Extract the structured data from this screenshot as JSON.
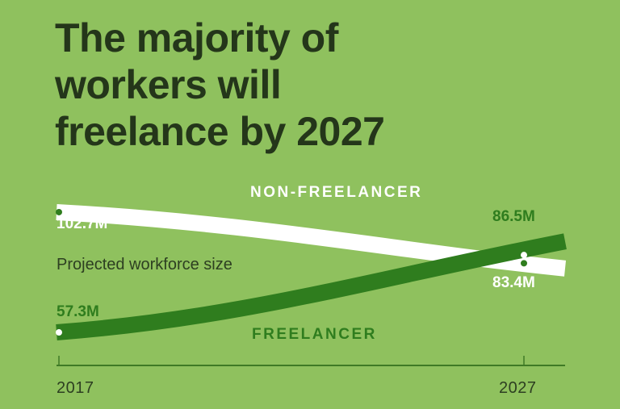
{
  "title_lines": [
    "The majority of",
    "workers will",
    "freelance by 2027"
  ],
  "chart_data": {
    "type": "line",
    "title": "The majority of workers will freelance by 2027",
    "subtitle": "Projected workforce size",
    "x": [
      2017,
      2027
    ],
    "xlim": [
      2017,
      2027
    ],
    "ylim": [
      50,
      110
    ],
    "x_tick_labels": [
      "2017",
      "2027"
    ],
    "series": [
      {
        "name": "NON-FREELANCER",
        "values": [
          102.7,
          83.4
        ],
        "labels": [
          "102.7M",
          "83.4M"
        ],
        "color": "#ffffff",
        "label_color": "#ffffff"
      },
      {
        "name": "FREELANCER",
        "values": [
          57.3,
          86.5
        ],
        "labels": [
          "57.3M",
          "86.5M"
        ],
        "color": "#2f7d1e",
        "label_color": "#2f7d1e"
      }
    ],
    "grid": false,
    "legend": "inline"
  },
  "colors": {
    "background": "#8fc15e",
    "title": "#24361a",
    "axis": "#3f7a26"
  }
}
